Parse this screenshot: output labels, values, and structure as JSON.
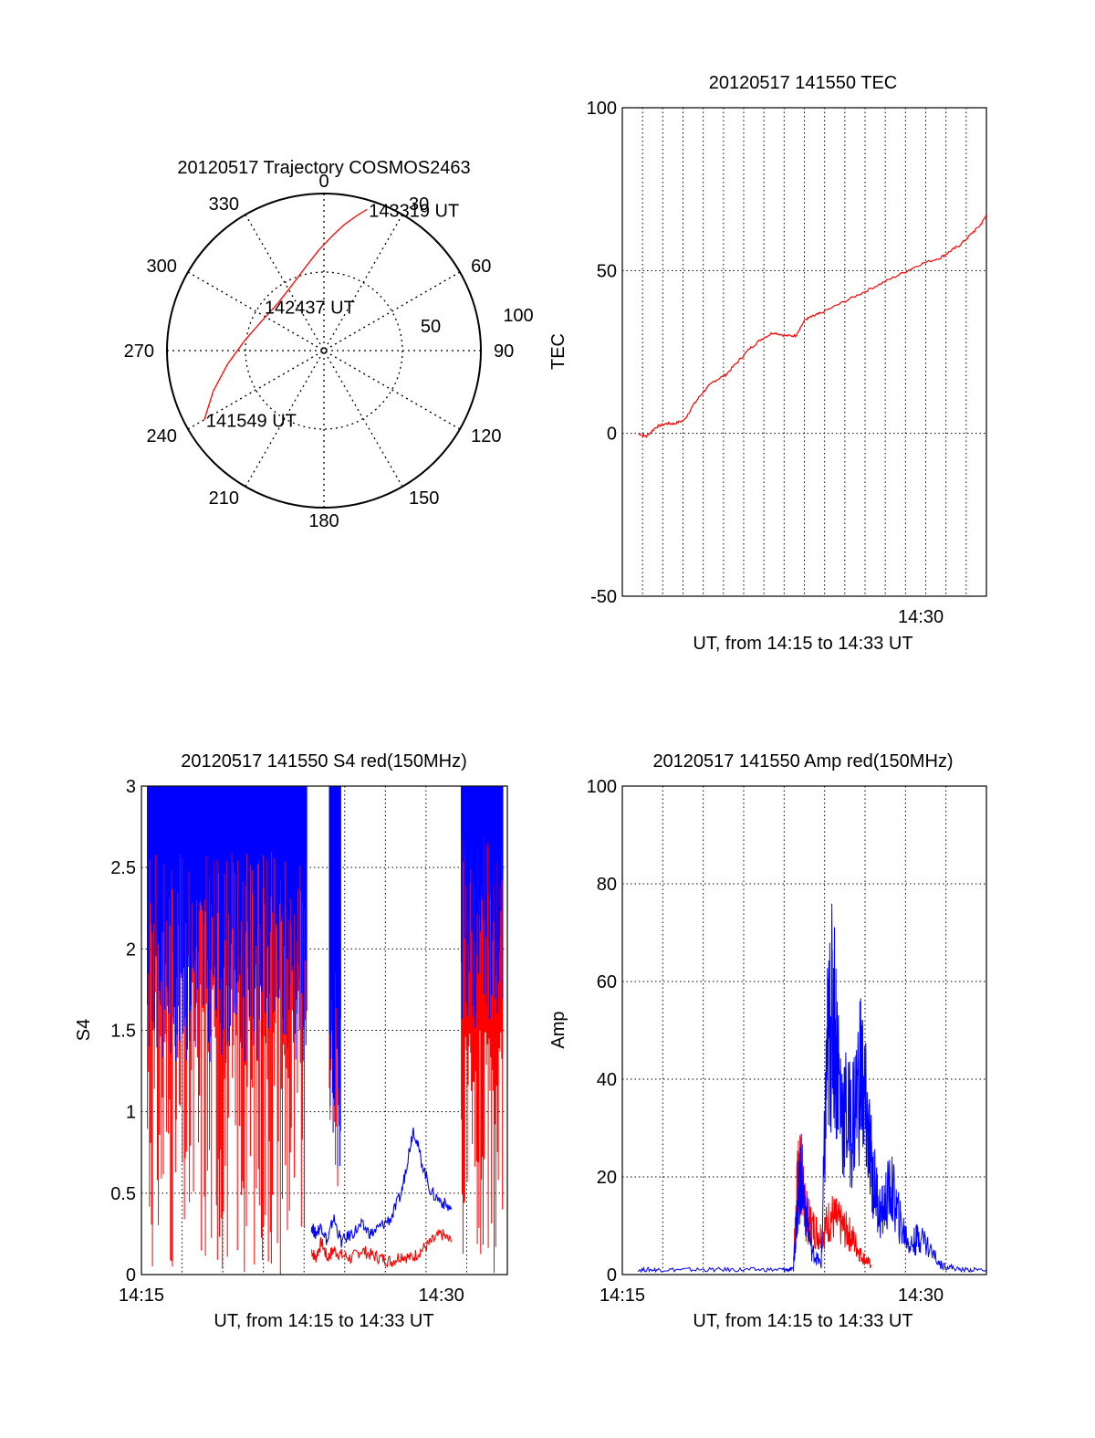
{
  "chart_data": [
    {
      "type": "polar",
      "title": "20120517 Trajectory COSMOS2463",
      "angle_labels": [
        "0",
        "30",
        "60",
        "90",
        "120",
        "150",
        "180",
        "210",
        "240",
        "270",
        "300",
        "330"
      ],
      "radial_labels": [
        "50",
        "100"
      ],
      "series": [
        {
          "color": "#ff0000",
          "points": [
            {
              "az": 240,
              "r": 88
            },
            {
              "az": 250,
              "r": 75
            },
            {
              "az": 262,
              "r": 62
            },
            {
              "az": 277,
              "r": 51
            },
            {
              "az": 295,
              "r": 44
            },
            {
              "az": 315,
              "r": 42
            },
            {
              "az": 333,
              "r": 46
            },
            {
              "az": 347,
              "r": 54
            },
            {
              "az": 357,
              "r": 64
            },
            {
              "az": 4,
              "r": 73
            },
            {
              "az": 9,
              "r": 81
            },
            {
              "az": 14,
              "r": 89
            },
            {
              "az": 17,
              "r": 94
            }
          ]
        }
      ],
      "annotations": [
        {
          "text": "143319 UT",
          "az": 17,
          "r": 94
        },
        {
          "text": "142437 UT",
          "az": 340,
          "r": 30
        },
        {
          "text": "141549 UT",
          "az": 240,
          "r": 88
        }
      ]
    },
    {
      "type": "line",
      "title": "20120517 141550 TEC",
      "xlabel": "UT, from 14:15 to 14:33 UT",
      "ylabel": "TEC",
      "xlim": [
        0,
        18.3
      ],
      "ylim": [
        -50,
        100
      ],
      "yticks": [
        -50,
        0,
        50,
        100
      ],
      "xtick_labels": [
        {
          "x": 15.0,
          "label": "14:30"
        }
      ],
      "grid": true,
      "series": [
        {
          "color": "#ff0000",
          "x": [
            0.8,
            1.2,
            1.7,
            2.2,
            2.6,
            3.1,
            3.6,
            4.1,
            4.6,
            5.2,
            5.8,
            6.4,
            7.0,
            7.6,
            8.2,
            8.7,
            9.2,
            9.6,
            10.0,
            11.0,
            12.0,
            13.0,
            14.0,
            15.0,
            16.0,
            16.5,
            17.0,
            17.5,
            18.0,
            18.3
          ],
          "y": [
            0,
            -1,
            2,
            3,
            3,
            4,
            9,
            13,
            16,
            18,
            22,
            26,
            29,
            31,
            30,
            30,
            35,
            36,
            37,
            40,
            43,
            46,
            49,
            52,
            54,
            56,
            58,
            61,
            64,
            67
          ]
        }
      ]
    },
    {
      "type": "line",
      "title": "20120517 141550 S4 red(150MHz)",
      "xlabel": "UT, from 14:15 to 14:33 UT",
      "ylabel": "S4",
      "xlim": [
        0,
        18.3
      ],
      "ylim": [
        0,
        3
      ],
      "yticks": [
        0,
        0.5,
        1,
        1.5,
        2,
        2.5,
        3
      ],
      "xtick_labels": [
        {
          "x": 0,
          "label": "14:15"
        },
        {
          "x": 15.0,
          "label": "14:30"
        }
      ],
      "grid": true,
      "series": [
        {
          "color": "#ff0000",
          "x": [
            8.5,
            8.7,
            9.0,
            9.3,
            9.6,
            10.0,
            10.5,
            11.0,
            11.5,
            12.0,
            12.5,
            13.0,
            13.5,
            14.0,
            14.5,
            15.0,
            15.5
          ],
          "y": [
            0.15,
            0.1,
            0.2,
            0.1,
            0.15,
            0.12,
            0.1,
            0.15,
            0.12,
            0.1,
            0.08,
            0.12,
            0.1,
            0.15,
            0.2,
            0.25,
            0.2
          ]
        },
        {
          "color": "#0000ff",
          "x": [
            8.5,
            8.7,
            9.0,
            9.3,
            9.6,
            10.0,
            10.5,
            11.0,
            11.5,
            12.0,
            12.5,
            13.0,
            13.3,
            13.6,
            14.0,
            14.5,
            15.0,
            15.5
          ],
          "y": [
            0.3,
            0.25,
            0.3,
            0.2,
            0.35,
            0.2,
            0.25,
            0.3,
            0.25,
            0.3,
            0.35,
            0.5,
            0.7,
            0.9,
            0.7,
            0.5,
            0.45,
            0.4
          ]
        }
      ]
    },
    {
      "type": "line",
      "title": "20120517 141550 Amp red(150MHz)",
      "xlabel": "UT, from 14:15 to 14:33 UT",
      "ylabel": "Amp",
      "xlim": [
        0,
        18.3
      ],
      "ylim": [
        0,
        100
      ],
      "yticks": [
        0,
        20,
        40,
        60,
        80,
        100
      ],
      "xtick_labels": [
        {
          "x": 0,
          "label": "14:15"
        },
        {
          "x": 15.0,
          "label": "14:30"
        }
      ],
      "grid": true,
      "series": [
        {
          "color": "#ff0000",
          "x": [
            8.6,
            8.8,
            9.0,
            9.2,
            9.5,
            10.0,
            10.5,
            11.0,
            11.5,
            12.0,
            12.5
          ],
          "y": [
            3,
            18,
            22,
            12,
            10,
            8,
            12,
            10,
            8,
            4,
            2
          ]
        },
        {
          "color": "#0000ff",
          "x": [
            0.8,
            2,
            4,
            6,
            8.0,
            8.6,
            8.8,
            9.0,
            9.5,
            10.0,
            10.3,
            10.6,
            11.0,
            11.5,
            12.0,
            12.3,
            12.6,
            13.0,
            13.5,
            14.0,
            14.5,
            15.0,
            16.0,
            17.0,
            18.3
          ],
          "y": [
            1,
            1,
            1,
            1,
            1,
            1,
            15,
            20,
            5,
            2,
            45,
            55,
            35,
            30,
            42,
            30,
            20,
            12,
            18,
            10,
            6,
            8,
            2,
            1,
            1
          ]
        }
      ]
    }
  ]
}
